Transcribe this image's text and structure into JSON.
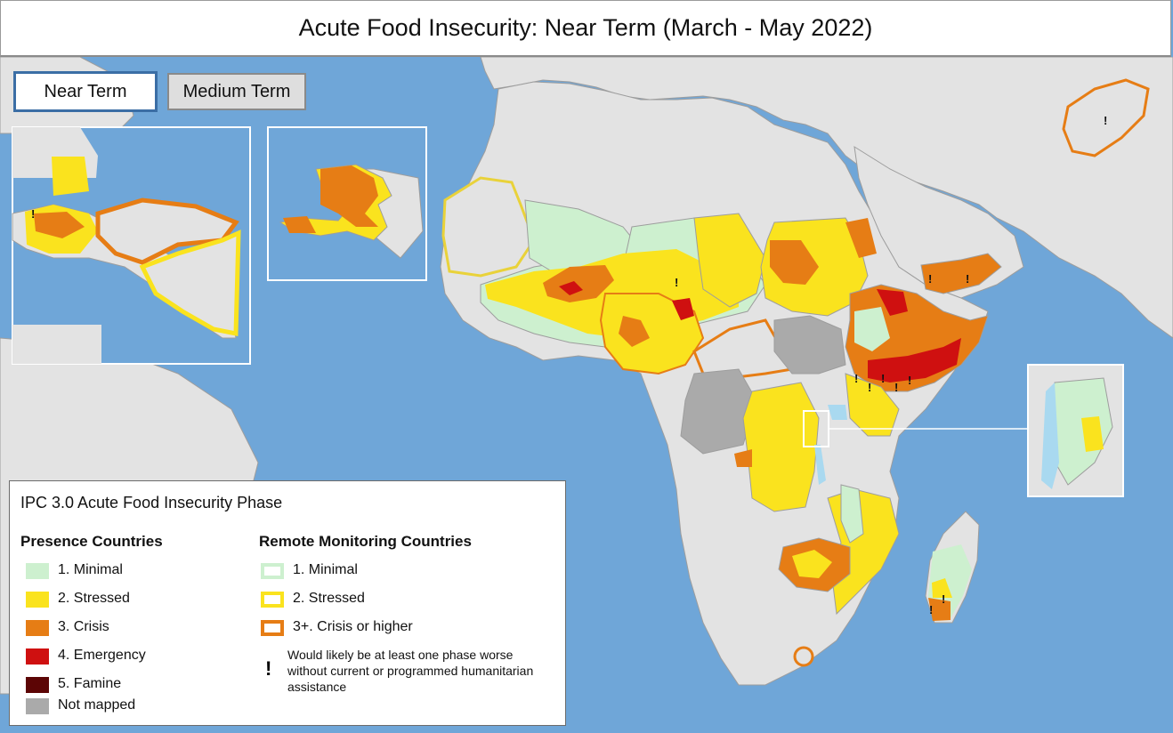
{
  "title": "Acute Food Insecurity: Near Term (March - May 2022)",
  "tabs": [
    {
      "label": "Near Term",
      "selected": true
    },
    {
      "label": "Medium Term",
      "selected": false
    }
  ],
  "legend": {
    "title": "IPC 3.0 Acute Food Insecurity Phase",
    "presence_heading": "Presence Countries",
    "remote_heading": "Remote Monitoring Countries",
    "presence_items": [
      {
        "label": "1. Minimal",
        "color": "#cdf0cf"
      },
      {
        "label": "2. Stressed",
        "color": "#fae31e"
      },
      {
        "label": "3. Crisis",
        "color": "#e67d15"
      },
      {
        "label": "4. Emergency",
        "color": "#cf1010"
      },
      {
        "label": "5. Famine",
        "color": "#5c0505"
      },
      {
        "label": "Not mapped",
        "color": "#aaaaaa"
      }
    ],
    "remote_items": [
      {
        "label": "1. Minimal",
        "color": "#cdf0cf"
      },
      {
        "label": "2. Stressed",
        "color": "#fae31e"
      },
      {
        "label": "3+. Crisis or higher",
        "color": "#e67d15"
      }
    ],
    "assistance_symbol": "!",
    "assistance_note": "Would likely be at least one phase worse without current or programmed humanitarian assistance"
  },
  "colors": {
    "ocean": "#6fa6d8",
    "land": "#e3e3e3",
    "border": "#9d9d9d"
  }
}
